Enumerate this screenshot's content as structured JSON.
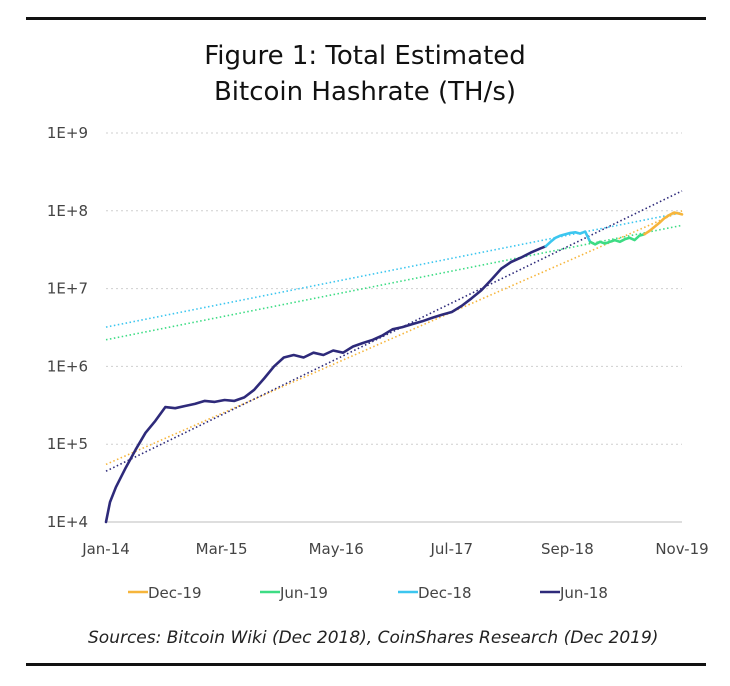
{
  "chart_data": {
    "type": "line",
    "title_lines": [
      "Figure 1: Total Estimated",
      "Bitcoin Hashrate (TH/s)"
    ],
    "y_scale": "log",
    "ylim": [
      10000,
      1000000000
    ],
    "y_ticks": [
      {
        "value": 1000000000,
        "label": "1E+9"
      },
      {
        "value": 100000000,
        "label": "1E+8"
      },
      {
        "value": 10000000,
        "label": "1E+7"
      },
      {
        "value": 1000000,
        "label": "1E+6"
      },
      {
        "value": 100000,
        "label": "1E+5"
      },
      {
        "value": 10000,
        "label": "1E+4"
      }
    ],
    "x_domain": [
      2014.0,
      2019.83
    ],
    "x_ticks": [
      {
        "value": 2014.0,
        "label": "Jan-14"
      },
      {
        "value": 2015.17,
        "label": "Mar-15"
      },
      {
        "value": 2016.33,
        "label": "May-16"
      },
      {
        "value": 2017.5,
        "label": "Jul-17"
      },
      {
        "value": 2018.67,
        "label": "Sep-18"
      },
      {
        "value": 2019.83,
        "label": "Nov-19"
      }
    ],
    "series": [
      {
        "name": "Jun-18",
        "color": "#2e2a7a",
        "x": [
          2014.0,
          2014.04,
          2014.1,
          2014.2,
          2014.3,
          2014.4,
          2014.5,
          2014.6,
          2014.7,
          2014.8,
          2014.9,
          2015.0,
          2015.1,
          2015.2,
          2015.3,
          2015.4,
          2015.5,
          2015.6,
          2015.7,
          2015.8,
          2015.9,
          2016.0,
          2016.1,
          2016.2,
          2016.3,
          2016.4,
          2016.5,
          2016.6,
          2016.7,
          2016.8,
          2016.9,
          2017.0,
          2017.1,
          2017.2,
          2017.3,
          2017.4,
          2017.5,
          2017.6,
          2017.7,
          2017.8,
          2017.9,
          2018.0,
          2018.1,
          2018.2,
          2018.3,
          2018.4,
          2018.45
        ],
        "values": [
          10000,
          18000,
          28000,
          50000,
          85000,
          140000,
          200000,
          300000,
          290000,
          310000,
          330000,
          360000,
          350000,
          370000,
          360000,
          400000,
          500000,
          700000,
          1000000,
          1300000,
          1400000,
          1300000,
          1500000,
          1400000,
          1600000,
          1500000,
          1800000,
          2000000,
          2200000,
          2500000,
          3000000,
          3200000,
          3500000,
          3800000,
          4200000,
          4600000,
          5000000,
          6000000,
          7500000,
          9500000,
          13000000,
          18000000,
          22000000,
          25000000,
          29000000,
          33000000,
          35000000
        ]
      },
      {
        "name": "Dec-18",
        "color": "#3cc6ef",
        "x": [
          2018.45,
          2018.5,
          2018.55,
          2018.6,
          2018.65,
          2018.7,
          2018.75,
          2018.8,
          2018.85,
          2018.9
        ],
        "values": [
          35000000,
          40000000,
          45000000,
          48000000,
          50000000,
          52000000,
          53000000,
          51000000,
          54000000,
          40000000
        ]
      },
      {
        "name": "Jun-19",
        "color": "#3ddc84",
        "x": [
          2018.9,
          2018.95,
          2019.0,
          2019.05,
          2019.1,
          2019.15,
          2019.2,
          2019.25,
          2019.3,
          2019.35,
          2019.4,
          2019.45
        ],
        "values": [
          40000000,
          37000000,
          40000000,
          38000000,
          40000000,
          42000000,
          40000000,
          43000000,
          45000000,
          42000000,
          48000000,
          50000000
        ]
      },
      {
        "name": "Dec-19",
        "color": "#f6b53b",
        "x": [
          2019.45,
          2019.5,
          2019.55,
          2019.6,
          2019.65,
          2019.7,
          2019.75,
          2019.8,
          2019.83
        ],
        "values": [
          50000000,
          55000000,
          62000000,
          70000000,
          80000000,
          88000000,
          95000000,
          92000000,
          90000000
        ]
      }
    ],
    "trendlines": [
      {
        "series": "Dec-19",
        "color": "#f6b53b",
        "x": [
          2014.0,
          2019.83
        ],
        "values": [
          55000,
          100000000
        ]
      },
      {
        "series": "Jun-19",
        "color": "#3ddc84",
        "x": [
          2014.0,
          2019.83
        ],
        "values": [
          2200000,
          65000000
        ]
      },
      {
        "series": "Dec-18",
        "color": "#3cc6ef",
        "x": [
          2014.0,
          2019.83
        ],
        "values": [
          3200000,
          95000000
        ]
      },
      {
        "series": "Jun-18",
        "color": "#2e2a7a",
        "x": [
          2014.0,
          2019.83
        ],
        "values": [
          45000,
          180000000
        ]
      }
    ],
    "legend": {
      "position": "bottom",
      "items": [
        {
          "label": "Dec-19",
          "color": "#f6b53b"
        },
        {
          "label": "Jun-19",
          "color": "#3ddc84"
        },
        {
          "label": "Dec-18",
          "color": "#3cc6ef"
        },
        {
          "label": "Jun-18",
          "color": "#2e2a7a"
        }
      ]
    },
    "grid": true
  },
  "source_text": "Sources: Bitcoin Wiki (Dec 2018), CoinShares Research (Dec 2019)"
}
